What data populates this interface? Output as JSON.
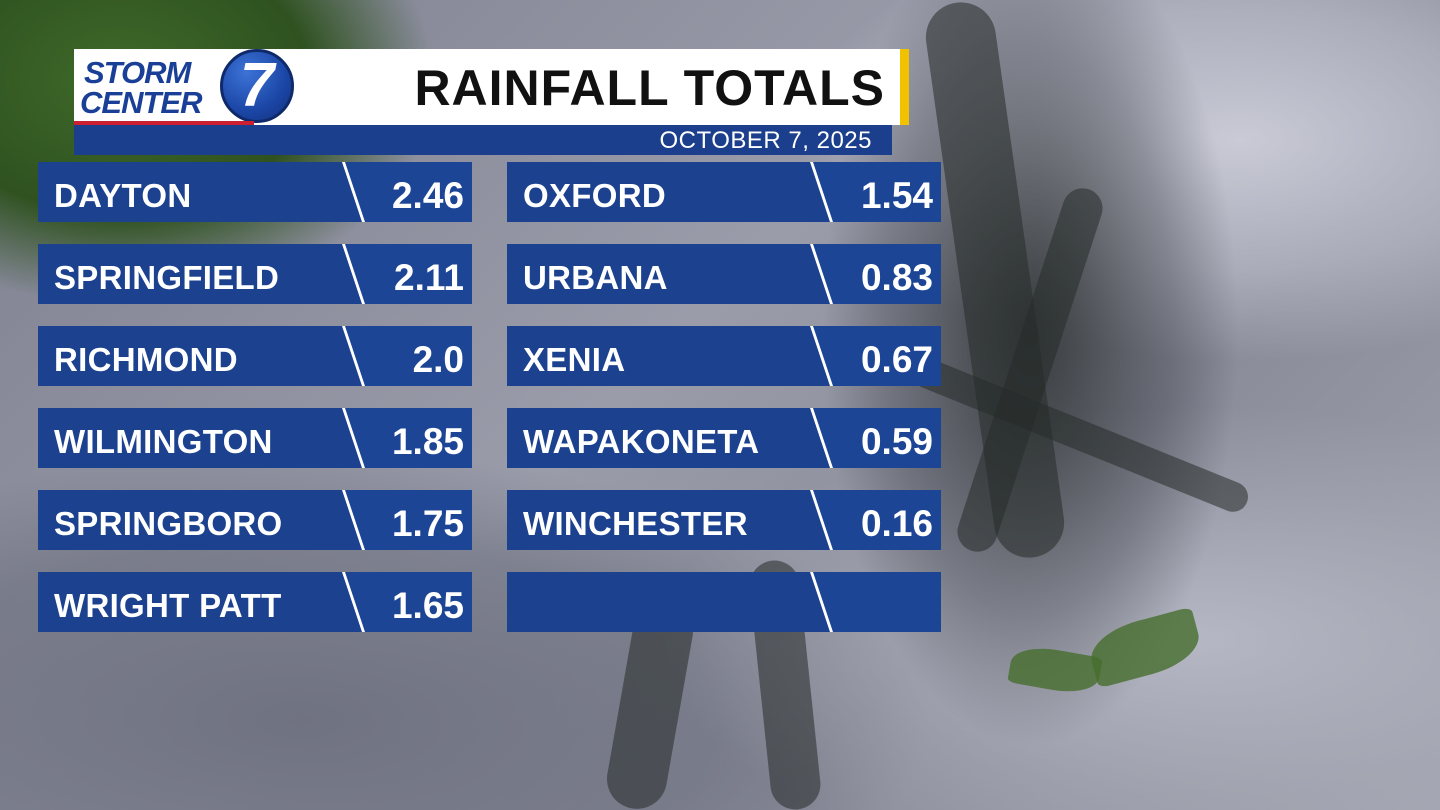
{
  "logo": {
    "line1": "STORM",
    "line2": "CENTER",
    "number": "7"
  },
  "title": "RAINFALL TOTALS",
  "date": "OCTOBER 7, 2025",
  "left_column": [
    {
      "city": "DAYTON",
      "value": "2.46"
    },
    {
      "city": "SPRINGFIELD",
      "value": "2.11"
    },
    {
      "city": "RICHMOND",
      "value": "2.0"
    },
    {
      "city": "WILMINGTON",
      "value": "1.85"
    },
    {
      "city": "SPRINGBORO",
      "value": "1.75"
    },
    {
      "city": "WRIGHT PATT",
      "value": "1.65"
    }
  ],
  "right_column": [
    {
      "city": "OXFORD",
      "value": "1.54"
    },
    {
      "city": "URBANA",
      "value": "0.83"
    },
    {
      "city": "XENIA",
      "value": "0.67"
    },
    {
      "city": "WAPAKONETA",
      "value": "0.59"
    },
    {
      "city": "WINCHESTER",
      "value": "0.16"
    },
    {
      "city": "",
      "value": ""
    }
  ],
  "colors": {
    "brand_blue": "#1b418f",
    "accent_yellow": "#f2c200",
    "logo_red": "#cc2030"
  }
}
